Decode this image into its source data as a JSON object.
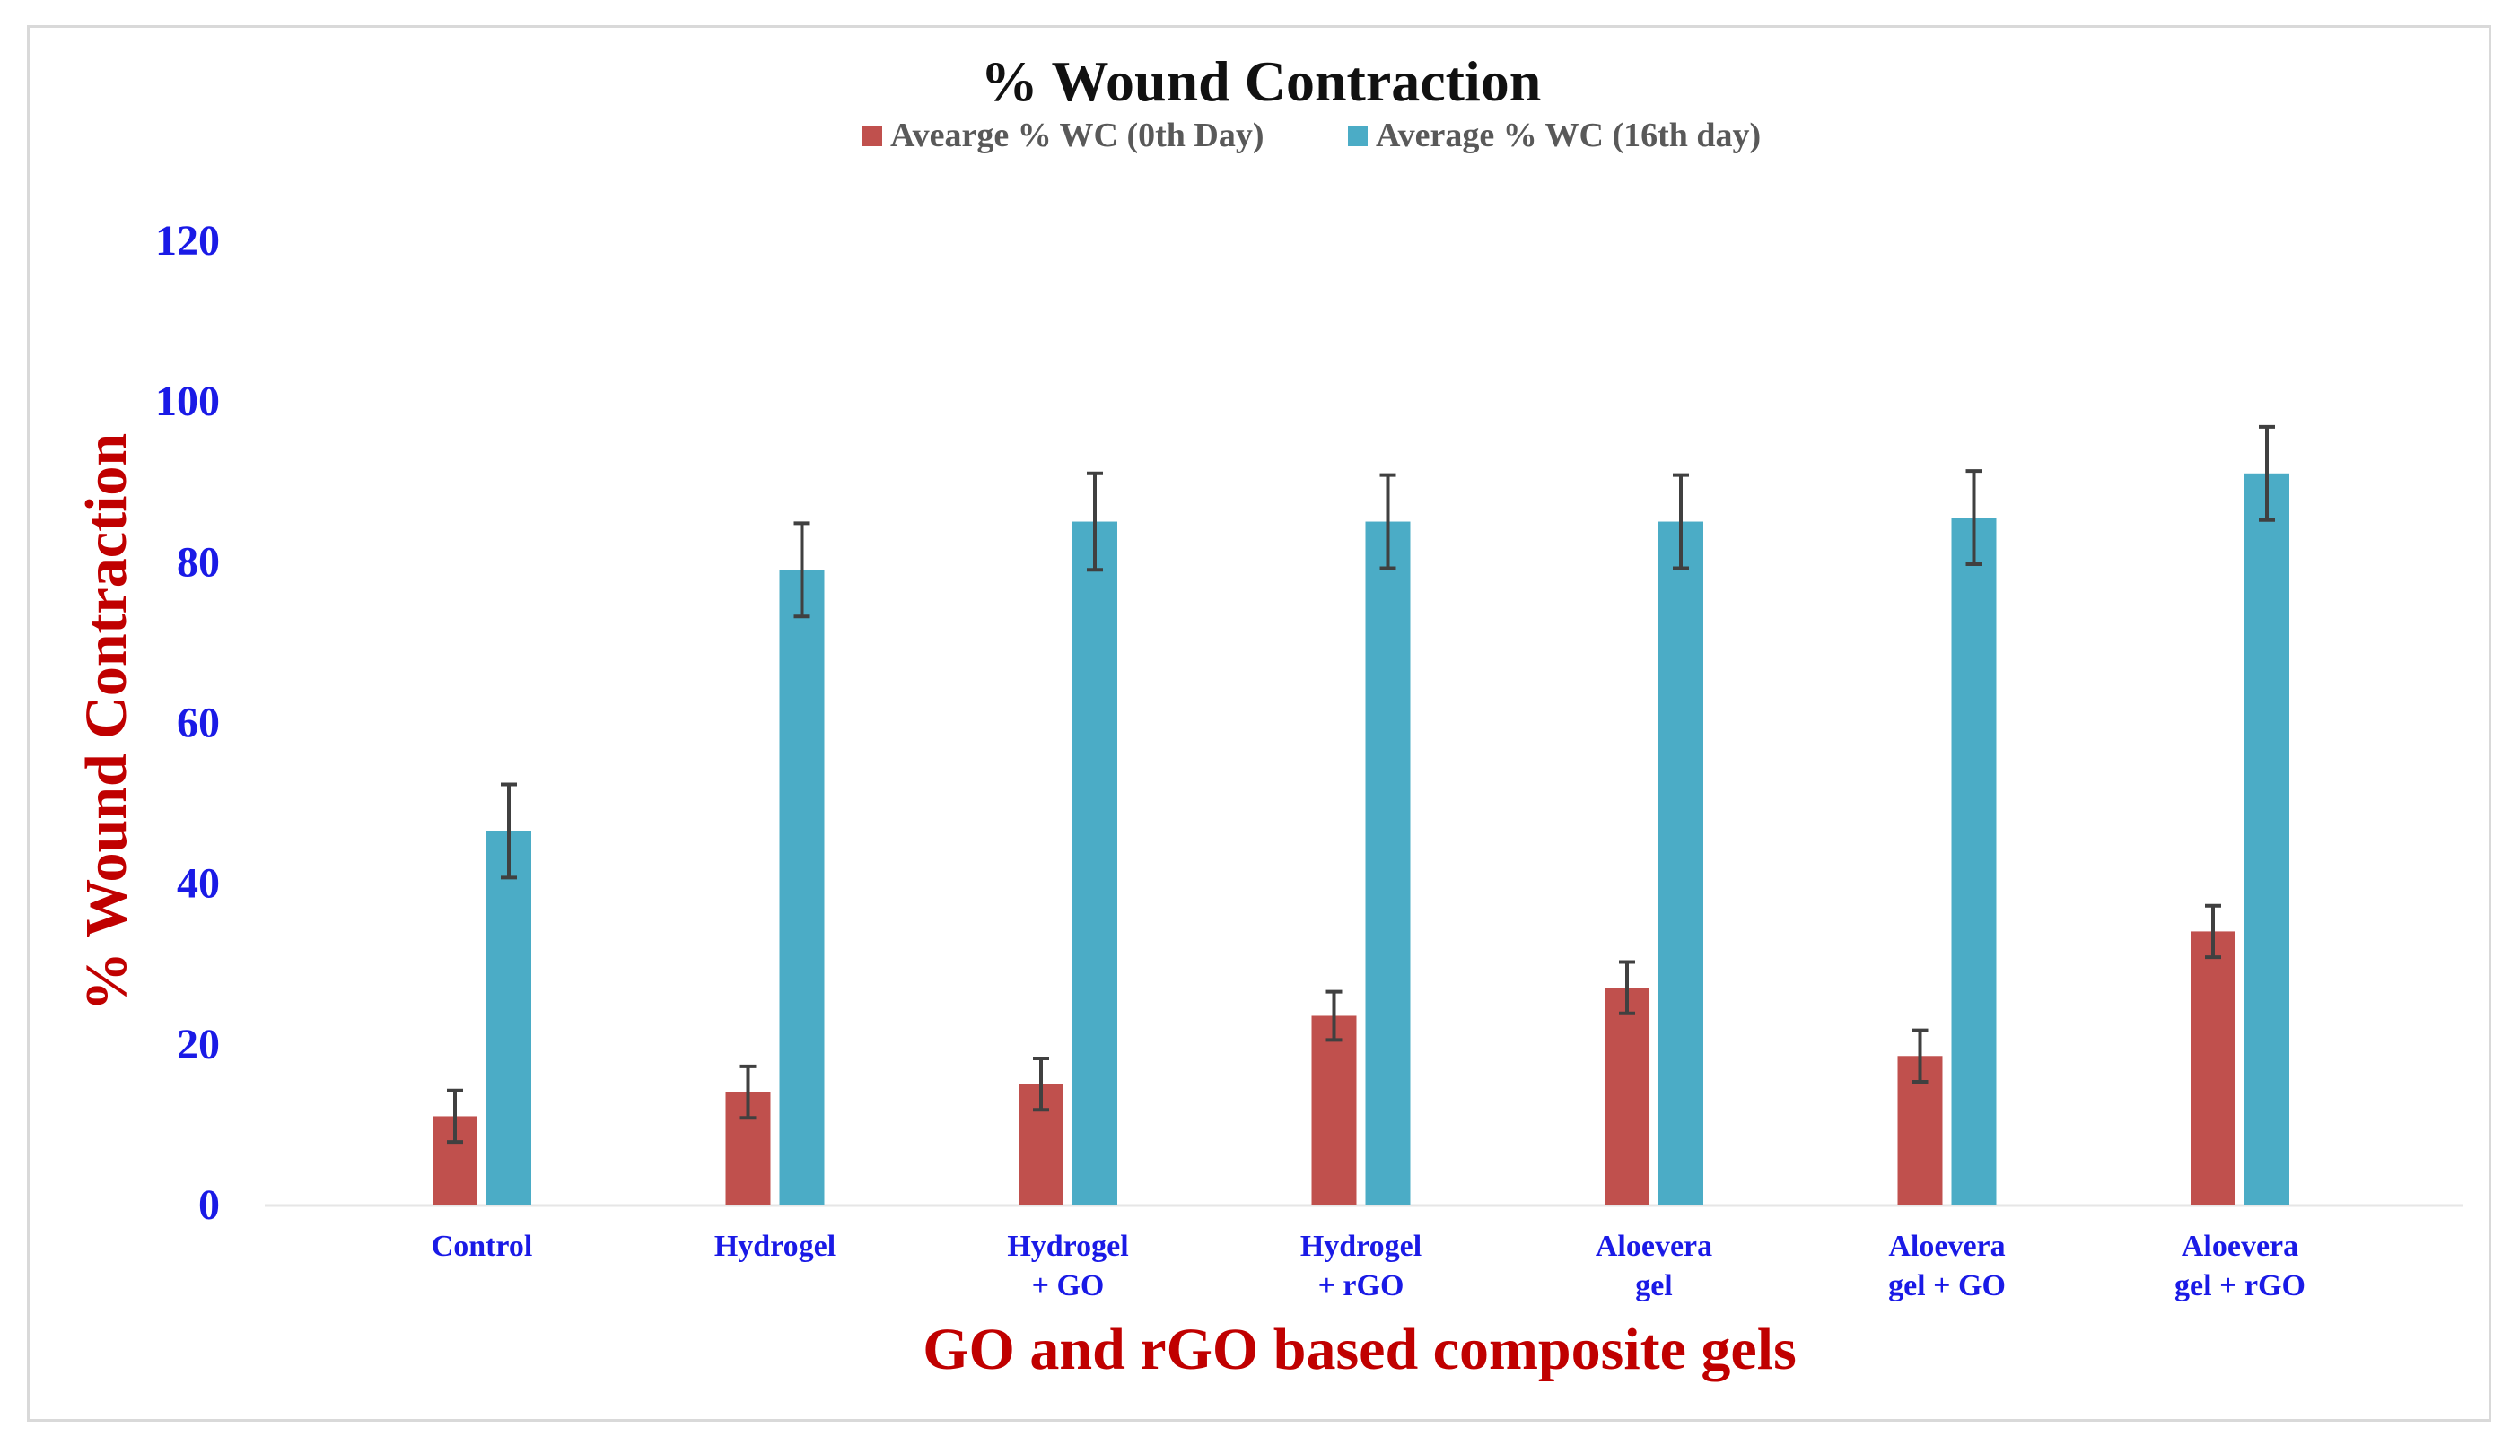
{
  "chart_data": {
    "type": "bar",
    "title": "% Wound Contraction",
    "xlabel": "GO and rGO based composite gels",
    "ylabel": "% Wound Contraction",
    "ylim": [
      0,
      120
    ],
    "yticks": [
      0,
      20,
      40,
      60,
      80,
      100,
      120
    ],
    "grid": false,
    "legend_position": "top",
    "categories": [
      [
        "Control"
      ],
      [
        "Hydrogel"
      ],
      [
        "Hydrogel",
        "+ GO"
      ],
      [
        "Hydrogel",
        "+ rGO"
      ],
      [
        "Aloevera",
        "gel"
      ],
      [
        "Aloevera",
        "gel + GO"
      ],
      [
        "Aloevera",
        "gel + rGO"
      ]
    ],
    "series": [
      {
        "name": "Avearge % WC (0th Day)",
        "color": "#c0504d",
        "values": [
          11,
          14,
          15,
          23.5,
          27,
          18.5,
          34
        ],
        "errors": [
          3.2,
          3.2,
          3.2,
          3.0,
          3.2,
          3.2,
          3.2
        ]
      },
      {
        "name": "Average % WC (16th day)",
        "color": "#4bacc6",
        "values": [
          46.5,
          79,
          85,
          85,
          85,
          85.5,
          91
        ],
        "errors": [
          5.8,
          5.8,
          6.0,
          5.8,
          5.8,
          5.8,
          5.8
        ]
      }
    ],
    "colors": {
      "title": "#111111",
      "y_tick": "#1a1ae6",
      "x_tick": "#1a1ae6",
      "axis_title": "#c00000",
      "legend_text": "#595959",
      "error_bar": "#404040",
      "baseline": "#e6e6e6"
    }
  }
}
